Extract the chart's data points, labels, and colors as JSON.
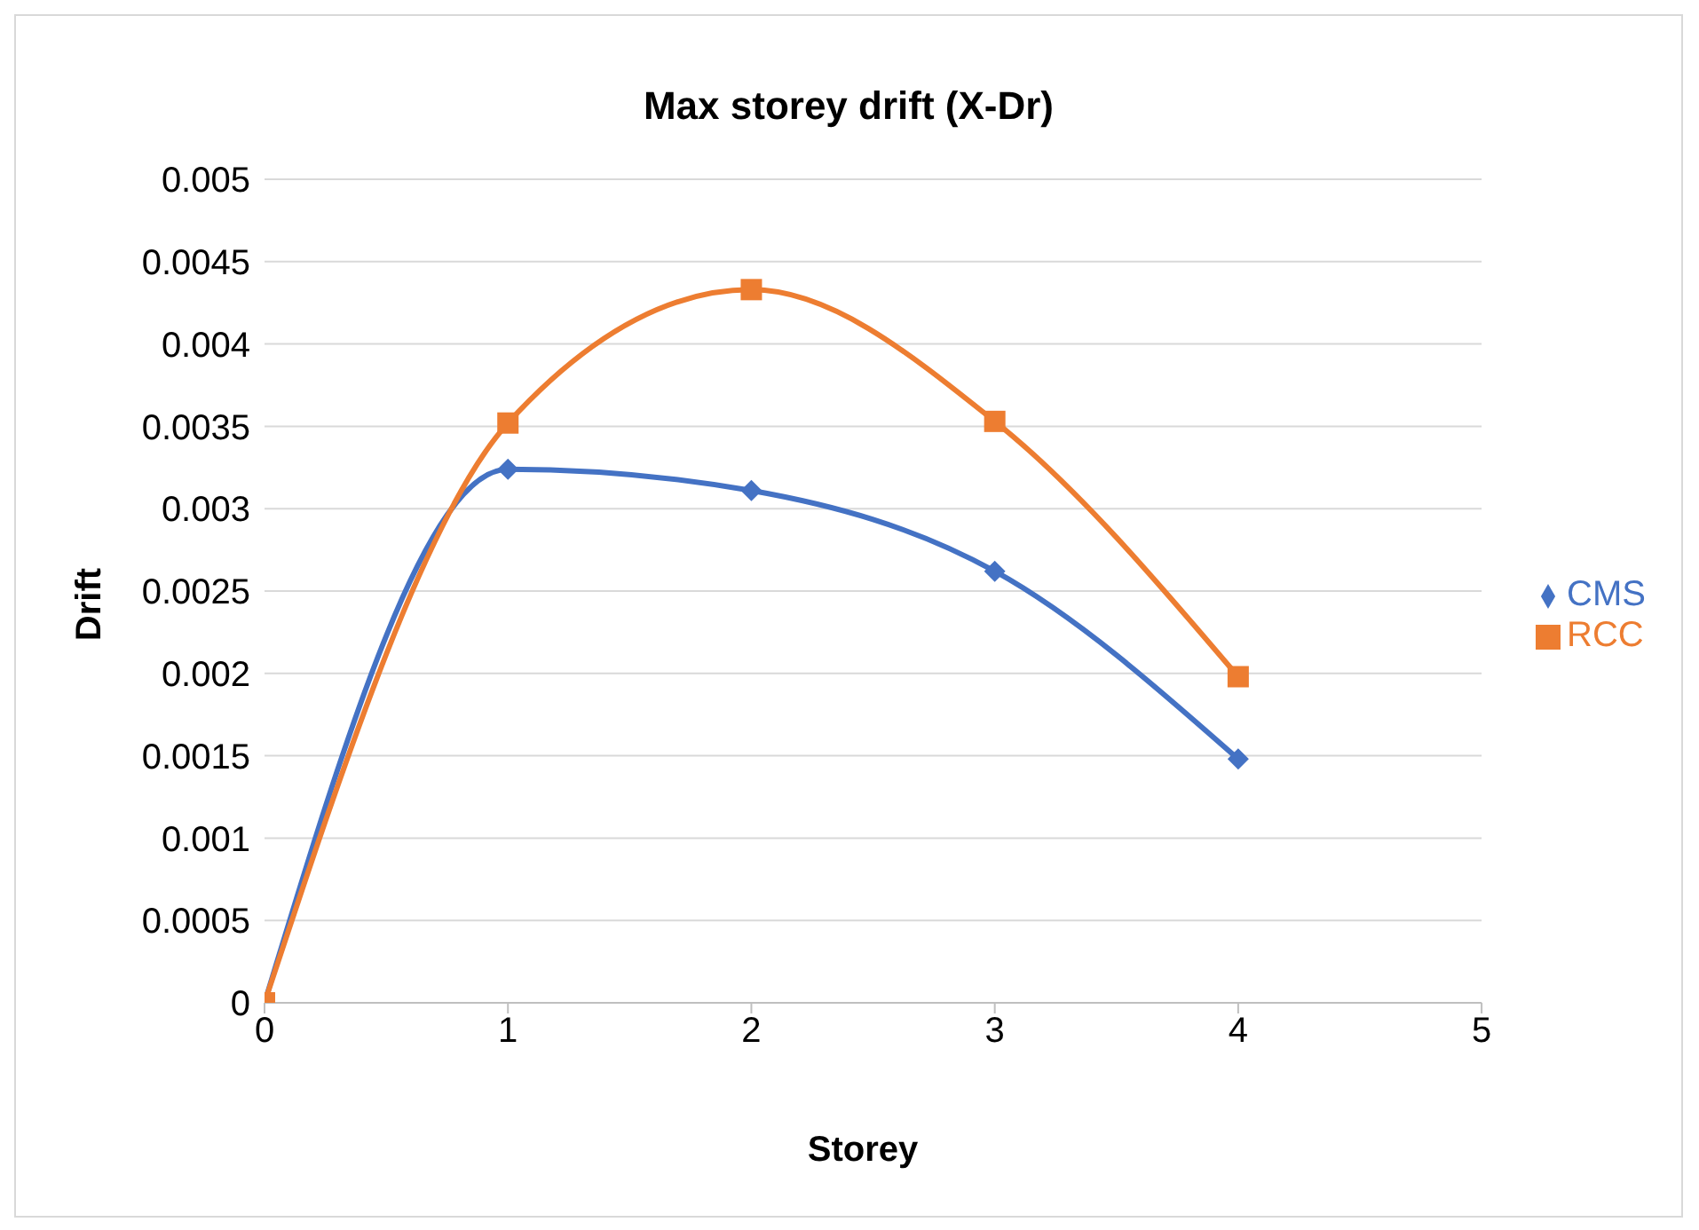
{
  "chart_data": {
    "type": "line",
    "title": "Max storey drift (X-Dr)",
    "xlabel": "Storey",
    "ylabel": "Drift",
    "x": [
      0,
      1,
      2,
      3,
      4
    ],
    "series": [
      {
        "name": "CMS",
        "color": "#4472c4",
        "marker": "diamond",
        "values": [
          0,
          0.00324,
          0.00311,
          0.00262,
          0.00148
        ]
      },
      {
        "name": "RCC",
        "color": "#ed7d31",
        "marker": "square",
        "values": [
          0,
          0.00352,
          0.00433,
          0.00353,
          0.00198
        ]
      }
    ],
    "xlim": [
      0,
      5
    ],
    "xticks": [
      0,
      1,
      2,
      3,
      4,
      5
    ],
    "ylim": [
      0,
      0.005
    ],
    "yticks": [
      0,
      0.0005,
      0.001,
      0.0015,
      0.002,
      0.0025,
      0.003,
      0.0035,
      0.004,
      0.0045,
      0.005
    ],
    "grid": "y",
    "legend": "right",
    "line_style": "solid"
  }
}
